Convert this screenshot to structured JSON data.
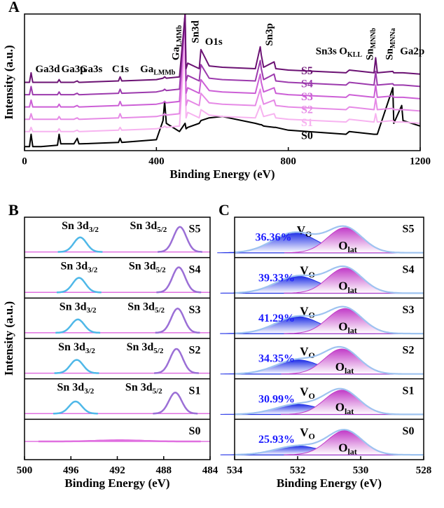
{
  "chart_data": [
    {
      "type": "line",
      "label": "A",
      "xlabel": "Binding Energy (eV)",
      "ylabel": "Intensity (a.u.)",
      "xlim": [
        0,
        1200
      ],
      "xticks": [
        0,
        400,
        800,
        1200
      ],
      "ylim": [
        0,
        100
      ],
      "x": [
        0,
        15,
        20,
        25,
        50,
        100,
        105,
        110,
        150,
        160,
        165,
        170,
        285,
        290,
        295,
        400,
        420,
        425,
        430,
        470,
        487,
        490,
        495,
        530,
        535,
        560,
        600,
        700,
        715,
        718,
        725,
        757,
        762,
        800,
        975,
        985,
        1060,
        1065,
        1070,
        1117,
        1120,
        1144,
        1148,
        1200
      ],
      "series": [
        {
          "name": "S0",
          "color": "#000000",
          "values": [
            3,
            3,
            12,
            3,
            3,
            4,
            12,
            5,
            5,
            9,
            5,
            5,
            6,
            9,
            6,
            8,
            22,
            36,
            20,
            14,
            20,
            16,
            17,
            20,
            22,
            24,
            25,
            20,
            19,
            19,
            18,
            17,
            17,
            15,
            12,
            14,
            12,
            12,
            12,
            46,
            20,
            33,
            22,
            18
          ]
        },
        {
          "name": "S1",
          "color": "#f7b3f0",
          "values": [
            14,
            14,
            17,
            14,
            14,
            14,
            16,
            14,
            14,
            15,
            14,
            14,
            15,
            17,
            15,
            16,
            17,
            18,
            17,
            18,
            80,
            24,
            28,
            24,
            30,
            26,
            25,
            24,
            33,
            30,
            25,
            27,
            24,
            23,
            21,
            23,
            21,
            27,
            21,
            22,
            21,
            21,
            21,
            20
          ]
        },
        {
          "name": "S2",
          "color": "#e68ae6",
          "values": [
            23,
            23,
            27,
            23,
            23,
            23,
            25,
            23,
            23,
            24,
            23,
            23,
            24,
            27,
            24,
            25,
            26,
            27,
            26,
            27,
            100,
            33,
            37,
            33,
            42,
            35,
            34,
            33,
            45,
            40,
            34,
            37,
            33,
            32,
            30,
            32,
            30,
            38,
            30,
            31,
            30,
            30,
            30,
            29
          ]
        },
        {
          "name": "S3",
          "color": "#cc5fd6",
          "values": [
            32,
            32,
            37,
            32,
            32,
            32,
            34,
            32,
            32,
            33,
            32,
            32,
            33,
            36,
            33,
            34,
            35,
            36,
            35,
            36,
            100,
            42,
            46,
            42,
            52,
            44,
            43,
            42,
            56,
            50,
            43,
            46,
            42,
            41,
            39,
            41,
            39,
            48,
            39,
            40,
            39,
            39,
            39,
            38
          ]
        },
        {
          "name": "S4",
          "color": "#9c3aad",
          "values": [
            41,
            41,
            47,
            41,
            41,
            41,
            43,
            41,
            41,
            42,
            41,
            41,
            42,
            45,
            42,
            43,
            44,
            45,
            44,
            45,
            100,
            51,
            55,
            51,
            63,
            53,
            52,
            51,
            66,
            60,
            52,
            56,
            51,
            50,
            48,
            50,
            48,
            58,
            48,
            49,
            48,
            48,
            48,
            47
          ]
        },
        {
          "name": "S5",
          "color": "#6b1273",
          "values": [
            50,
            50,
            57,
            50,
            50,
            50,
            52,
            50,
            50,
            51,
            50,
            50,
            51,
            54,
            51,
            52,
            53,
            54,
            53,
            54,
            100,
            60,
            64,
            60,
            74,
            62,
            61,
            60,
            76,
            70,
            61,
            65,
            60,
            59,
            57,
            59,
            57,
            68,
            57,
            58,
            57,
            57,
            57,
            56
          ]
        }
      ],
      "annotations": [
        {
          "text": "Ga3d",
          "x": 70,
          "y": 59
        },
        {
          "text": "Ga3p",
          "x": 149,
          "y": 59
        },
        {
          "text": "Ga3s",
          "x": 202,
          "y": 59
        },
        {
          "text": "C1s",
          "x": 291,
          "y": 59
        },
        {
          "text": "Ga",
          "sub": "LMMb",
          "x": 404,
          "y": 59
        },
        {
          "text": "Ga",
          "sub": "LMMb",
          "x": 462,
          "y": 79,
          "vertical": true
        },
        {
          "text": "Sn3d",
          "x": 521,
          "y": 87,
          "vertical": true
        },
        {
          "text": "O1s",
          "x": 574,
          "y": 79
        },
        {
          "text": "Sn3p",
          "x": 745,
          "y": 85,
          "vertical": true
        },
        {
          "text": "Sn3s",
          "x": 915,
          "y": 72
        },
        {
          "text": "O",
          "sub": "KLL",
          "x": 989,
          "y": 72
        },
        {
          "text": "Sn",
          "sub": "MNNb",
          "x": 1050,
          "y": 78,
          "vertical": true
        },
        {
          "text": "Sn",
          "sub": "MNNa",
          "x": 1110,
          "y": 78,
          "vertical": true
        },
        {
          "text": "Ga2p",
          "x": 1176,
          "y": 72
        }
      ]
    },
    {
      "type": "peak-stack",
      "label": "B",
      "xlabel": "Binding Energy (eV)",
      "ylabel": "Intensity (a.u.)",
      "xlim": [
        500,
        484
      ],
      "xticks": [
        500,
        496,
        492,
        488,
        484
      ],
      "ylim": [
        0,
        1
      ],
      "baseline_color": "#e070e0",
      "series": [
        {
          "name": "S5",
          "baseline": 0.14,
          "peaks": [
            {
              "text": "Sn 3d",
              "sub": "3/2",
              "center": 495.2,
              "height": 0.36,
              "width": 0.55,
              "color": "#4fb8e8"
            },
            {
              "text": "Sn 3d",
              "sub": "5/2",
              "center": 486.6,
              "height": 0.62,
              "width": 0.55,
              "color": "#9b6fd6"
            }
          ]
        },
        {
          "name": "S4",
          "baseline": 0.14,
          "peaks": [
            {
              "text": "Sn 3d",
              "sub": "3/2",
              "center": 495.3,
              "height": 0.36,
              "width": 0.55,
              "color": "#4fb8e8"
            },
            {
              "text": "Sn 3d",
              "sub": "5/2",
              "center": 486.7,
              "height": 0.62,
              "width": 0.55,
              "color": "#9b6fd6"
            }
          ]
        },
        {
          "name": "S3",
          "baseline": 0.14,
          "peaks": [
            {
              "text": "Sn 3d",
              "sub": "3/2",
              "center": 495.4,
              "height": 0.33,
              "width": 0.55,
              "color": "#4fb8e8"
            },
            {
              "text": "Sn 3d",
              "sub": "5/2",
              "center": 486.8,
              "height": 0.6,
              "width": 0.55,
              "color": "#9b6fd6"
            }
          ]
        },
        {
          "name": "S2",
          "baseline": 0.14,
          "peaks": [
            {
              "text": "Sn 3d",
              "sub": "3/2",
              "center": 495.5,
              "height": 0.33,
              "width": 0.55,
              "color": "#4fb8e8"
            },
            {
              "text": "Sn 3d",
              "sub": "5/2",
              "center": 486.9,
              "height": 0.6,
              "width": 0.55,
              "color": "#9b6fd6"
            }
          ]
        },
        {
          "name": "S1",
          "baseline": 0.14,
          "peaks": [
            {
              "text": "Sn 3d",
              "sub": "3/2",
              "center": 495.6,
              "height": 0.3,
              "width": 0.55,
              "color": "#4fb8e8"
            },
            {
              "text": "Sn 3d",
              "sub": "5/2",
              "center": 487.0,
              "height": 0.52,
              "width": 0.55,
              "color": "#9b6fd6"
            }
          ]
        },
        {
          "name": "S0",
          "baseline": 0.45,
          "peaks": [
            {
              "center": 491.8,
              "height": 0.03,
              "width": 2.0,
              "color": "#e070e0"
            }
          ]
        }
      ]
    },
    {
      "type": "peak-stack",
      "label": "C",
      "xlabel": "Binding Energy (eV)",
      "xlim": [
        534,
        528
      ],
      "xticks": [
        534,
        532,
        530,
        528
      ],
      "ylim": [
        0,
        1
      ],
      "baseline_color": "#2a3ad0",
      "filled": true,
      "envelope_color": "#9ec3f0",
      "value_label_color": "#1a1aff",
      "series": [
        {
          "name": "S5",
          "baseline": 0.12,
          "value": 36.36,
          "value_label": "36.36%",
          "peaks": [
            {
              "text": "V",
              "sub": "O",
              "center": 532.1,
              "height": 0.5,
              "width": 0.7,
              "color": "#1f2fe6"
            },
            {
              "text": "O",
              "sub": "lat",
              "center": 530.5,
              "height": 0.62,
              "width": 0.55,
              "color": "#c23cc8"
            }
          ]
        },
        {
          "name": "S4",
          "baseline": 0.12,
          "value": 39.33,
          "value_label": "39.33%",
          "peaks": [
            {
              "text": "V",
              "sub": "O",
              "center": 532.0,
              "height": 0.42,
              "width": 0.7,
              "color": "#1f2fe6"
            },
            {
              "text": "O",
              "sub": "lat",
              "center": 530.5,
              "height": 0.62,
              "width": 0.55,
              "color": "#c23cc8"
            }
          ]
        },
        {
          "name": "S3",
          "baseline": 0.12,
          "value": 41.29,
          "value_label": "41.29%",
          "peaks": [
            {
              "text": "V",
              "sub": "O",
              "center": 532.0,
              "height": 0.42,
              "width": 0.7,
              "color": "#1f2fe6"
            },
            {
              "text": "O",
              "sub": "lat",
              "center": 530.5,
              "height": 0.62,
              "width": 0.55,
              "color": "#c23cc8"
            }
          ]
        },
        {
          "name": "S2",
          "baseline": 0.12,
          "value": 34.35,
          "value_label": "34.35%",
          "peaks": [
            {
              "text": "V",
              "sub": "O",
              "center": 532.0,
              "height": 0.35,
              "width": 0.7,
              "color": "#1f2fe6"
            },
            {
              "text": "O",
              "sub": "lat",
              "center": 530.6,
              "height": 0.62,
              "width": 0.55,
              "color": "#c23cc8"
            }
          ]
        },
        {
          "name": "S1",
          "baseline": 0.12,
          "value": 30.99,
          "value_label": "30.99%",
          "peaks": [
            {
              "text": "V",
              "sub": "O",
              "center": 532.0,
              "height": 0.25,
              "width": 0.7,
              "color": "#1f2fe6"
            },
            {
              "text": "O",
              "sub": "lat",
              "center": 530.6,
              "height": 0.6,
              "width": 0.55,
              "color": "#c23cc8"
            }
          ]
        },
        {
          "name": "S0",
          "baseline": 0.12,
          "value": 25.93,
          "value_label": "25.93%",
          "peaks": [
            {
              "text": "V",
              "sub": "O",
              "center": 532.0,
              "height": 0.22,
              "width": 0.7,
              "color": "#1f2fe6"
            },
            {
              "text": "O",
              "sub": "lat",
              "center": 530.5,
              "height": 0.6,
              "width": 0.55,
              "color": "#c23cc8"
            }
          ]
        }
      ]
    }
  ]
}
